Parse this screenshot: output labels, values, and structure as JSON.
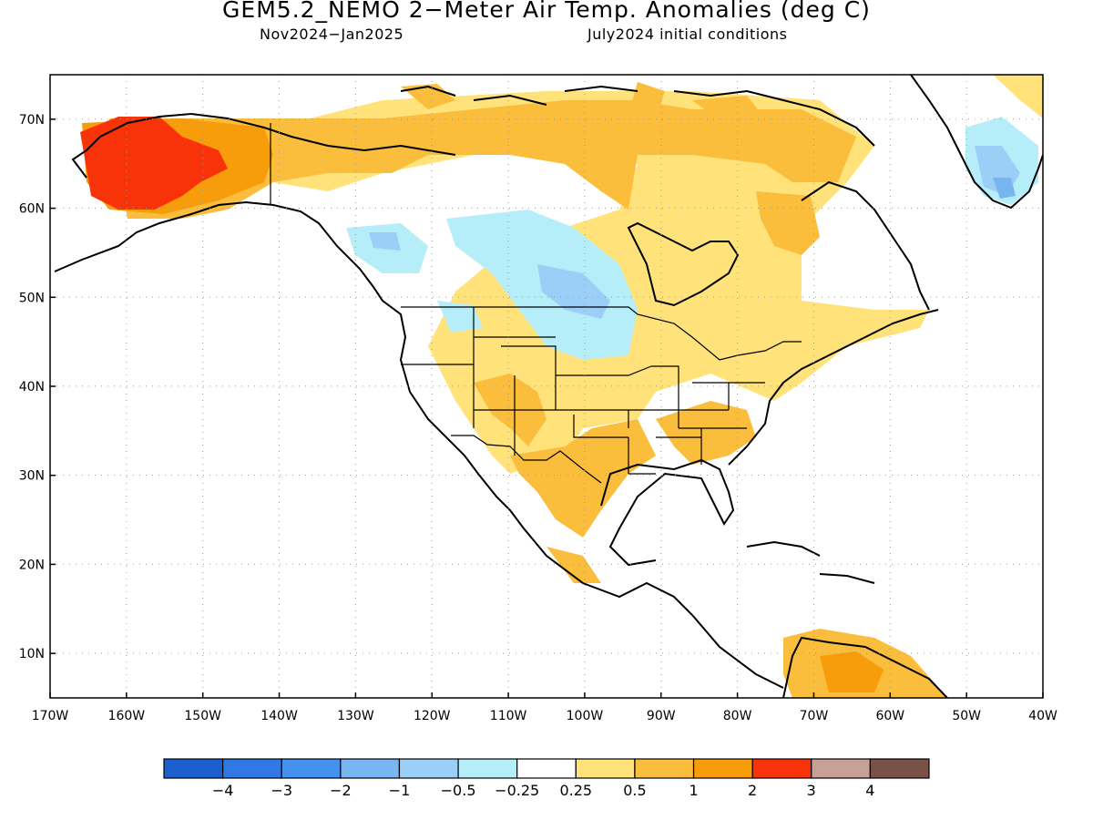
{
  "title": "GEM5.2_NEMO 2−Meter Air Temp. Anomalies (deg C)",
  "subtitle_left": "Nov2024−Jan2025",
  "subtitle_right": "July2024 initial conditions",
  "axes": {
    "lon_labels": [
      "170W",
      "160W",
      "150W",
      "140W",
      "130W",
      "120W",
      "110W",
      "100W",
      "90W",
      "80W",
      "70W",
      "60W",
      "50W",
      "40W"
    ],
    "lat_labels": [
      "10N",
      "20N",
      "30N",
      "40N",
      "50N",
      "60N",
      "70N"
    ],
    "lon_range": [
      -170,
      -40
    ],
    "lat_range": [
      5,
      75
    ],
    "grid": "dotted"
  },
  "colorbar": {
    "colors": [
      "#1a5fcc",
      "#2f78e6",
      "#4592ee",
      "#78b6f2",
      "#9ccff7",
      "#b5eef8",
      "#ffffff",
      "#ffe27a",
      "#fbbd3c",
      "#f79c0b",
      "#f93309",
      "#c7a097",
      "#7a5147"
    ],
    "labels": [
      "−4",
      "−3",
      "−2",
      "−1",
      "−0.5",
      "−0.25",
      "0.25",
      "0.5",
      "1",
      "2",
      "3",
      "4"
    ]
  },
  "anomaly_regions": [
    {
      "name": "Alaska",
      "range": "3"
    },
    {
      "name": "Northern Canada",
      "range": "1"
    },
    {
      "name": "Western Canada",
      "range": "-0.5"
    },
    {
      "name": "Southeastern US",
      "range": "0.5"
    },
    {
      "name": "Greenland",
      "range": "-1"
    },
    {
      "name": "Northern South America",
      "range": "1"
    }
  ]
}
